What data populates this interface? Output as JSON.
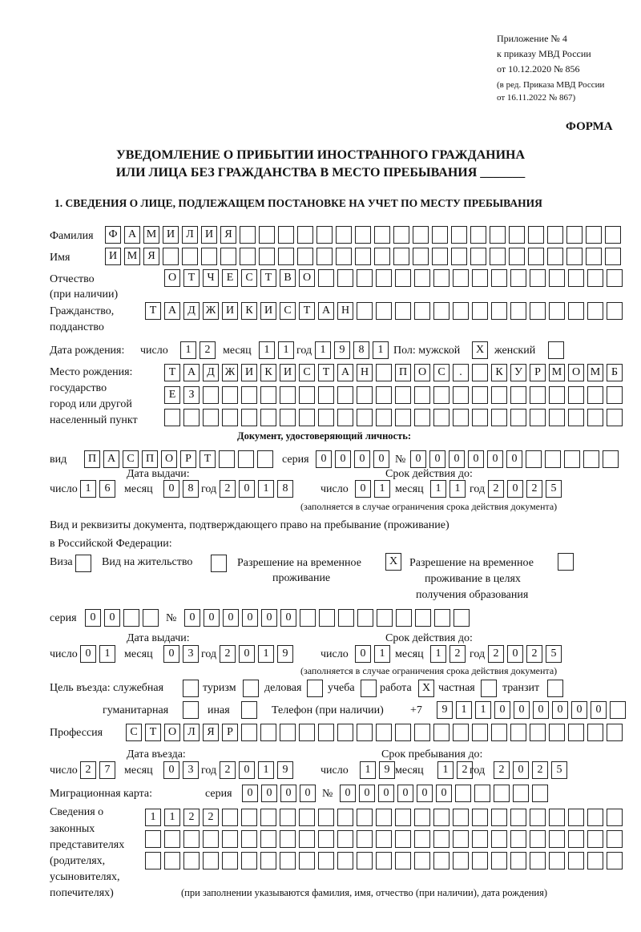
{
  "header": {
    "l1": "Приложение № 4",
    "l2": "к приказу МВД России",
    "l3": "от 10.12.2020 № 856",
    "l4": "(в ред. Приказа МВД России",
    "l5": "от 16.11.2022 № 867)"
  },
  "form_label": "ФОРМА",
  "title": {
    "l1": "УВЕДОМЛЕНИЕ О ПРИБЫТИИ ИНОСТРАННОГО ГРАЖДАНИНА",
    "l2": "ИЛИ ЛИЦА БЕЗ ГРАЖДАНСТВА В МЕСТО ПРЕБЫВАНИЯ _______"
  },
  "section1": "1. СВЕДЕНИЯ О ЛИЦЕ, ПОДЛЕЖАЩЕМ ПОСТАНОВКЕ НА УЧЕТ ПО МЕСТУ ПРЕБЫВАНИЯ",
  "labels": {
    "surname": "Фамилия",
    "name": "Имя",
    "patronymic": "Отчество",
    "patronymic2": "(при наличии)",
    "citizenship": "Гражданство,",
    "citizenship2": "подданство",
    "birth_date": "Дата рождения:",
    "day": "число",
    "month": "месяц",
    "year": "год",
    "sex": "Пол: мужской",
    "female": "женский",
    "birthplace1": "Место рождения:",
    "birthplace2": "государство",
    "birthplace3": "город или другой",
    "birthplace4": "населенный пункт",
    "id_doc": "Документ, удостоверяющий личность:",
    "kind": "вид",
    "series": "серия",
    "number": "№",
    "issue_date": "Дата выдачи:",
    "valid_until": "Срок действия до:",
    "validity_note": "(заполняется в случае ограничения срока действия документа)",
    "right_doc1": "Вид и реквизиты документа, подтверждающего право на пребывание (проживание)",
    "right_doc2": "в Российской Федерации:",
    "visa": "Виза",
    "residence": "Вид на жительство",
    "trp1": "Разрешение на временное",
    "trp2": "проживание",
    "trpe1": "Разрешение на временное",
    "trpe2": "проживание в целях",
    "trpe3": "получения образования",
    "purpose": "Цель въезда: служебная",
    "tourism": "туризм",
    "business": "деловая",
    "study": "учеба",
    "work": "работа",
    "private": "частная",
    "transit": "транзит",
    "humanitarian": "гуманитарная",
    "other": "иная",
    "phone": "Телефон (при наличии)",
    "phone_prefix": "+7",
    "profession": "Профессия",
    "entry_date": "Дата въезда:",
    "stay_until": "Срок пребывания до:",
    "migration_card": "Миграционная карта:",
    "rep1": "Сведения о",
    "rep2": "законных",
    "rep3": "представителях",
    "rep4": "(родителях,",
    "rep5": "усыновителях,",
    "rep6": "попечителях)",
    "rep_note": "(при заполнении указываются фамилия, имя, отчество (при наличии), дата рождения)"
  },
  "values": {
    "surname": "ФАМИЛИЯ",
    "name": "ИМЯ",
    "patronymic": "ОТЧЕСТВО",
    "citizenship": "ТАДЖИКИСТАН",
    "birth_day": "12",
    "birth_month": "11",
    "birth_year": "1981",
    "male": "X",
    "female": "",
    "birthplace1": "ТАДЖИКИСТАН ПОС. КУРМОМБ",
    "birthplace2": "ЕЗ",
    "birthplace3": "",
    "doc_kind": "ПАСПОРТ",
    "doc_series": "0000",
    "doc_number": "000000",
    "doc_issue_day": "16",
    "doc_issue_month": "08",
    "doc_issue_year": "2018",
    "doc_valid_day": "01",
    "doc_valid_month": "11",
    "doc_valid_year": "2025",
    "visa": "",
    "residence": "",
    "trp": "X",
    "trpe": "",
    "right_series": "00",
    "right_number": "000000",
    "right_issue_day": "01",
    "right_issue_month": "03",
    "right_issue_year": "2019",
    "right_valid_day": "01",
    "right_valid_month": "12",
    "right_valid_year": "2025",
    "p_service": "",
    "p_tourism": "",
    "p_business": "",
    "p_study": "",
    "p_work": "X",
    "p_private": "",
    "p_transit": "",
    "p_humanitarian": "",
    "p_other": "",
    "phone": "911000000",
    "profession": "СТОЛЯР",
    "entry_day": "27",
    "entry_month": "03",
    "entry_year": "2019",
    "stay_day": "19",
    "stay_month": "12",
    "stay_year": "2025",
    "mc_series": "0000",
    "mc_number": "000000",
    "rep1": "1122",
    "rep2": "",
    "rep3": ""
  }
}
